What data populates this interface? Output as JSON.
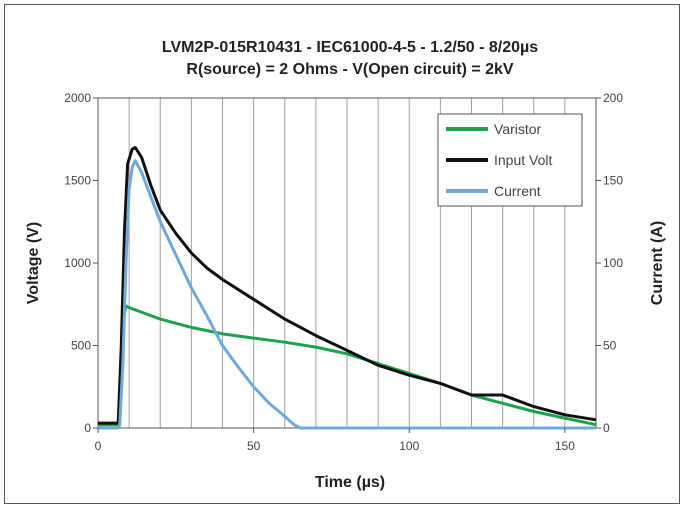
{
  "chart_data": {
    "type": "line",
    "title": [
      "LVM2P-015R10431 - IEC61000-4-5 - 1.2/50 - 8/20µs",
      "R(source) = 2 Ohms - V(Open circuit) = 2kV"
    ],
    "xlabel": "Time (µs)",
    "ylabel": "Voltage (V)",
    "y2label": "Current (A)",
    "xlim": [
      0,
      160
    ],
    "ylim": [
      0,
      2000
    ],
    "y2lim": [
      0,
      200
    ],
    "xticks": [
      "0",
      "50",
      "100",
      "150"
    ],
    "yticks": [
      "0",
      "500",
      "1000",
      "1500",
      "2000"
    ],
    "y2ticks": [
      "0",
      "50",
      "100",
      "150",
      "200"
    ],
    "grid": "vertical",
    "legend_position": "top-right",
    "series": [
      {
        "name": "Varistor",
        "axis": "left",
        "color": "#1aa34a",
        "x": [
          0,
          6.5,
          7.2,
          8,
          9,
          10,
          20,
          30,
          40,
          50,
          60,
          70,
          80,
          90,
          100,
          110,
          120,
          130,
          140,
          150,
          160
        ],
        "y": [
          20,
          20,
          300,
          650,
          740,
          730,
          660,
          610,
          570,
          545,
          520,
          490,
          450,
          390,
          330,
          270,
          200,
          150,
          100,
          60,
          20
        ]
      },
      {
        "name": "Input Volt",
        "axis": "left",
        "color": "#111111",
        "x": [
          0,
          6.5,
          7.5,
          8.5,
          9.5,
          11,
          12,
          14,
          17,
          20,
          25,
          30,
          35,
          40,
          50,
          60,
          70,
          80,
          90,
          100,
          110,
          120,
          130,
          140,
          150,
          160
        ],
        "y": [
          30,
          30,
          500,
          1200,
          1600,
          1690,
          1700,
          1640,
          1470,
          1320,
          1180,
          1060,
          970,
          900,
          780,
          660,
          560,
          470,
          380,
          320,
          270,
          200,
          200,
          130,
          80,
          50
        ]
      },
      {
        "name": "Current",
        "axis": "right",
        "color": "#6fa8dc",
        "x": [
          0,
          6.5,
          7,
          8,
          9,
          10,
          11,
          12,
          14,
          17,
          20,
          25,
          30,
          35,
          40,
          45,
          50,
          55,
          60,
          63,
          65,
          160
        ],
        "y": [
          0,
          0,
          2,
          40,
          100,
          145,
          158,
          162,
          155,
          140,
          125,
          105,
          85,
          68,
          50,
          37,
          25,
          15,
          7,
          2,
          0,
          0
        ]
      }
    ]
  }
}
